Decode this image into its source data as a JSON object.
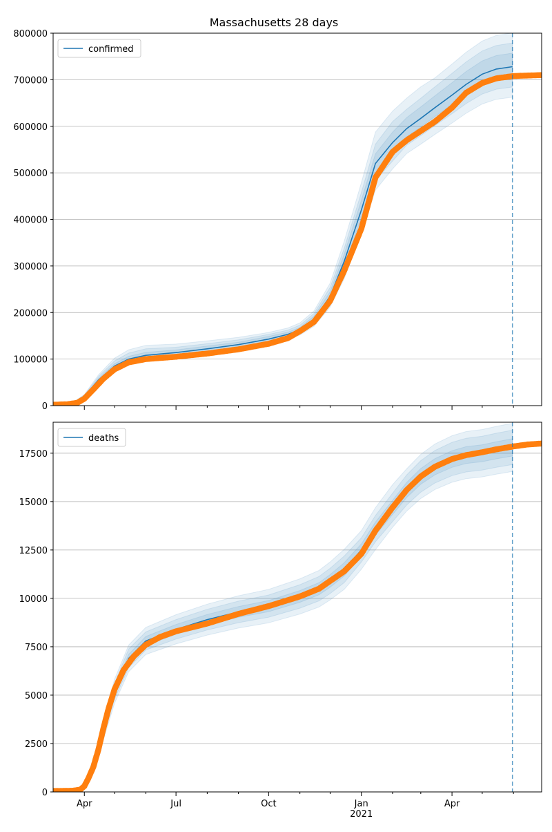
{
  "figure": {
    "title": "Massachusetts 28 days"
  },
  "colors": {
    "model": "#1f77b4",
    "observed": "#ff7f0e",
    "band": "#1f77b4",
    "vline": "#1f77b4",
    "grid": "#b0b0b0"
  },
  "x_axis": {
    "type": "date",
    "range": [
      "2020-03-01",
      "2021-06-29"
    ],
    "major_ticks": [
      {
        "date": "2020-04-01",
        "label": "Apr",
        "sublabel": ""
      },
      {
        "date": "2020-07-01",
        "label": "Jul",
        "sublabel": ""
      },
      {
        "date": "2020-10-01",
        "label": "Oct",
        "sublabel": ""
      },
      {
        "date": "2021-01-01",
        "label": "Jan",
        "sublabel": "2021"
      },
      {
        "date": "2021-04-01",
        "label": "Apr",
        "sublabel": ""
      }
    ],
    "minor_ticks": [
      "2020-05-01",
      "2020-06-01",
      "2020-08-01",
      "2020-09-01",
      "2020-11-01",
      "2020-12-01",
      "2021-02-01",
      "2021-03-01",
      "2021-05-01",
      "2021-06-01"
    ],
    "forecast_start": "2021-05-31"
  },
  "chart_data": [
    {
      "type": "line",
      "legend": "confirmed",
      "legend_position": "top-left",
      "grid": "horizontal",
      "ylim": [
        0,
        800000
      ],
      "yticks": [
        {
          "value": 0,
          "label": "0"
        },
        {
          "value": 100000,
          "label": "100000"
        },
        {
          "value": 200000,
          "label": "200000"
        },
        {
          "value": 300000,
          "label": "300000"
        },
        {
          "value": 400000,
          "label": "400000"
        },
        {
          "value": 500000,
          "label": "500000"
        },
        {
          "value": 600000,
          "label": "600000"
        },
        {
          "value": 700000,
          "label": "700000"
        },
        {
          "value": 800000,
          "label": "800000"
        }
      ],
      "model": {
        "x": [
          "2020-03-01",
          "2020-03-20",
          "2020-04-01",
          "2020-04-15",
          "2020-05-01",
          "2020-05-15",
          "2020-06-01",
          "2020-07-01",
          "2020-08-01",
          "2020-09-01",
          "2020-10-01",
          "2020-10-20",
          "2020-11-01",
          "2020-11-15",
          "2020-12-01",
          "2020-12-15",
          "2021-01-01",
          "2021-01-15",
          "2021-02-01",
          "2021-02-15",
          "2021-03-01",
          "2021-03-15",
          "2021-04-01",
          "2021-04-15",
          "2021-05-01",
          "2021-05-15",
          "2021-05-31"
        ],
        "y": [
          2000,
          5000,
          20000,
          55000,
          85000,
          100000,
          108000,
          114000,
          122000,
          131000,
          143000,
          153000,
          163000,
          185000,
          235000,
          310000,
          420000,
          520000,
          565000,
          595000,
          617000,
          640000,
          667000,
          690000,
          712000,
          723000,
          728000
        ]
      },
      "bands": [
        {
          "lower_pct": [
            0.85,
            0.9,
            0.9,
            0.9,
            0.9,
            0.9,
            0.9,
            0.9,
            0.9,
            0.9,
            0.92,
            0.93,
            0.93,
            0.92,
            0.9,
            0.88,
            0.88,
            0.89,
            0.9,
            0.91,
            0.91,
            0.91,
            0.91,
            0.91,
            0.91,
            0.91,
            0.91
          ],
          "upper_pct": [
            1.15,
            1.2,
            1.2,
            1.2,
            1.2,
            1.2,
            1.2,
            1.16,
            1.14,
            1.12,
            1.1,
            1.09,
            1.09,
            1.1,
            1.12,
            1.14,
            1.14,
            1.13,
            1.12,
            1.11,
            1.11,
            1.1,
            1.1,
            1.1,
            1.1,
            1.1,
            1.1
          ]
        },
        {
          "lower_pct": [
            0.9,
            0.93,
            0.93,
            0.93,
            0.93,
            0.93,
            0.93,
            0.93,
            0.93,
            0.93,
            0.95,
            0.95,
            0.95,
            0.94,
            0.93,
            0.92,
            0.92,
            0.93,
            0.93,
            0.94,
            0.94,
            0.94,
            0.94,
            0.94,
            0.94,
            0.94,
            0.94
          ],
          "upper_pct": [
            1.1,
            1.13,
            1.13,
            1.13,
            1.13,
            1.13,
            1.13,
            1.1,
            1.09,
            1.08,
            1.07,
            1.06,
            1.06,
            1.07,
            1.08,
            1.09,
            1.09,
            1.08,
            1.08,
            1.07,
            1.07,
            1.07,
            1.07,
            1.07,
            1.07,
            1.07,
            1.07
          ]
        },
        {
          "lower_pct": [
            0.95,
            0.96,
            0.96,
            0.96,
            0.96,
            0.96,
            0.96,
            0.96,
            0.96,
            0.96,
            0.97,
            0.97,
            0.97,
            0.97,
            0.96,
            0.96,
            0.96,
            0.96,
            0.97,
            0.97,
            0.97,
            0.97,
            0.97,
            0.97,
            0.97,
            0.97,
            0.97
          ],
          "upper_pct": [
            1.05,
            1.06,
            1.06,
            1.06,
            1.06,
            1.06,
            1.06,
            1.05,
            1.05,
            1.04,
            1.04,
            1.03,
            1.03,
            1.04,
            1.04,
            1.05,
            1.05,
            1.04,
            1.04,
            1.04,
            1.04,
            1.04,
            1.04,
            1.04,
            1.04,
            1.04,
            1.04
          ]
        }
      ],
      "observed": {
        "x": [
          "2020-03-01",
          "2020-03-15",
          "2020-03-25",
          "2020-04-01",
          "2020-04-10",
          "2020-04-20",
          "2020-05-01",
          "2020-05-15",
          "2020-06-01",
          "2020-07-01",
          "2020-08-01",
          "2020-09-01",
          "2020-10-01",
          "2020-10-20",
          "2020-11-01",
          "2020-11-15",
          "2020-12-01",
          "2020-12-15",
          "2021-01-01",
          "2021-01-15",
          "2021-02-01",
          "2021-02-15",
          "2021-03-01",
          "2021-03-15",
          "2021-04-01",
          "2021-04-15",
          "2021-05-01",
          "2021-05-15",
          "2021-06-01",
          "2021-06-15",
          "2021-06-29"
        ],
        "y": [
          2000,
          3000,
          6000,
          15000,
          35000,
          58000,
          78000,
          93000,
          100000,
          105000,
          112000,
          121000,
          133000,
          145000,
          160000,
          180000,
          225000,
          290000,
          380000,
          490000,
          545000,
          570000,
          590000,
          610000,
          640000,
          672000,
          693000,
          703000,
          708000,
          709000,
          710000
        ]
      }
    },
    {
      "type": "line",
      "legend": "deaths",
      "legend_position": "top-left",
      "grid": "horizontal",
      "ylim": [
        0,
        19100
      ],
      "yticks": [
        {
          "value": 0,
          "label": "0"
        },
        {
          "value": 2500,
          "label": "2500"
        },
        {
          "value": 5000,
          "label": "5000"
        },
        {
          "value": 7500,
          "label": "7500"
        },
        {
          "value": 10000,
          "label": "10000"
        },
        {
          "value": 12500,
          "label": "12500"
        },
        {
          "value": 15000,
          "label": "15000"
        },
        {
          "value": 17500,
          "label": "17500"
        }
      ],
      "model": {
        "x": [
          "2020-03-01",
          "2020-03-25",
          "2020-04-01",
          "2020-04-10",
          "2020-04-20",
          "2020-05-01",
          "2020-05-15",
          "2020-06-01",
          "2020-07-01",
          "2020-08-01",
          "2020-09-01",
          "2020-10-01",
          "2020-11-01",
          "2020-11-20",
          "2020-12-01",
          "2020-12-15",
          "2021-01-01",
          "2021-01-15",
          "2021-02-01",
          "2021-02-15",
          "2021-03-01",
          "2021-03-15",
          "2021-04-01",
          "2021-04-15",
          "2021-05-01",
          "2021-05-15",
          "2021-05-31"
        ],
        "y": [
          50,
          80,
          400,
          1500,
          3200,
          5200,
          6900,
          7800,
          8400,
          8900,
          9300,
          9600,
          10100,
          10500,
          10900,
          11500,
          12500,
          13600,
          14700,
          15600,
          16300,
          16800,
          17200,
          17400,
          17500,
          17650,
          17800
        ]
      },
      "bands": [
        {
          "lower_pct": [
            0.9,
            0.9,
            0.85,
            0.85,
            0.85,
            0.88,
            0.9,
            0.91,
            0.91,
            0.91,
            0.91,
            0.91,
            0.91,
            0.91,
            0.91,
            0.91,
            0.92,
            0.92,
            0.93,
            0.93,
            0.93,
            0.93,
            0.93,
            0.93,
            0.93,
            0.93,
            0.93
          ],
          "upper_pct": [
            1.1,
            1.1,
            1.15,
            1.15,
            1.15,
            1.12,
            1.1,
            1.09,
            1.09,
            1.09,
            1.09,
            1.09,
            1.09,
            1.09,
            1.09,
            1.09,
            1.08,
            1.08,
            1.08,
            1.07,
            1.07,
            1.07,
            1.07,
            1.07,
            1.07,
            1.07,
            1.07
          ]
        },
        {
          "lower_pct": [
            0.94,
            0.94,
            0.9,
            0.9,
            0.9,
            0.92,
            0.93,
            0.94,
            0.94,
            0.94,
            0.94,
            0.94,
            0.94,
            0.94,
            0.94,
            0.94,
            0.95,
            0.95,
            0.95,
            0.95,
            0.95,
            0.95,
            0.95,
            0.95,
            0.95,
            0.95,
            0.95
          ],
          "upper_pct": [
            1.06,
            1.06,
            1.1,
            1.1,
            1.1,
            1.08,
            1.07,
            1.06,
            1.06,
            1.06,
            1.06,
            1.06,
            1.06,
            1.06,
            1.06,
            1.06,
            1.05,
            1.05,
            1.05,
            1.05,
            1.05,
            1.05,
            1.05,
            1.05,
            1.05,
            1.05,
            1.05
          ]
        },
        {
          "lower_pct": [
            0.97,
            0.97,
            0.95,
            0.95,
            0.95,
            0.96,
            0.97,
            0.97,
            0.97,
            0.97,
            0.97,
            0.97,
            0.97,
            0.97,
            0.97,
            0.97,
            0.975,
            0.975,
            0.975,
            0.975,
            0.975,
            0.975,
            0.975,
            0.975,
            0.975,
            0.975,
            0.975
          ],
          "upper_pct": [
            1.03,
            1.03,
            1.05,
            1.05,
            1.05,
            1.04,
            1.03,
            1.03,
            1.03,
            1.03,
            1.03,
            1.03,
            1.03,
            1.03,
            1.03,
            1.03,
            1.025,
            1.025,
            1.025,
            1.025,
            1.025,
            1.025,
            1.025,
            1.025,
            1.025,
            1.025,
            1.025
          ]
        }
      ],
      "observed": {
        "x": [
          "2020-03-01",
          "2020-03-20",
          "2020-03-28",
          "2020-04-01",
          "2020-04-05",
          "2020-04-10",
          "2020-04-15",
          "2020-04-20",
          "2020-04-25",
          "2020-05-01",
          "2020-05-10",
          "2020-05-20",
          "2020-06-01",
          "2020-06-15",
          "2020-07-01",
          "2020-08-01",
          "2020-09-01",
          "2020-10-01",
          "2020-11-01",
          "2020-11-20",
          "2020-12-01",
          "2020-12-15",
          "2021-01-01",
          "2021-01-15",
          "2021-02-01",
          "2021-02-15",
          "2021-03-01",
          "2021-03-15",
          "2021-04-01",
          "2021-04-15",
          "2021-05-01",
          "2021-05-15",
          "2021-06-01",
          "2021-06-15",
          "2021-06-29"
        ],
        "y": [
          50,
          60,
          120,
          300,
          700,
          1300,
          2200,
          3300,
          4300,
          5300,
          6300,
          7000,
          7600,
          8000,
          8300,
          8700,
          9200,
          9600,
          10100,
          10500,
          10900,
          11400,
          12300,
          13500,
          14700,
          15600,
          16300,
          16800,
          17200,
          17400,
          17550,
          17700,
          17850,
          17950,
          18000
        ]
      }
    }
  ]
}
